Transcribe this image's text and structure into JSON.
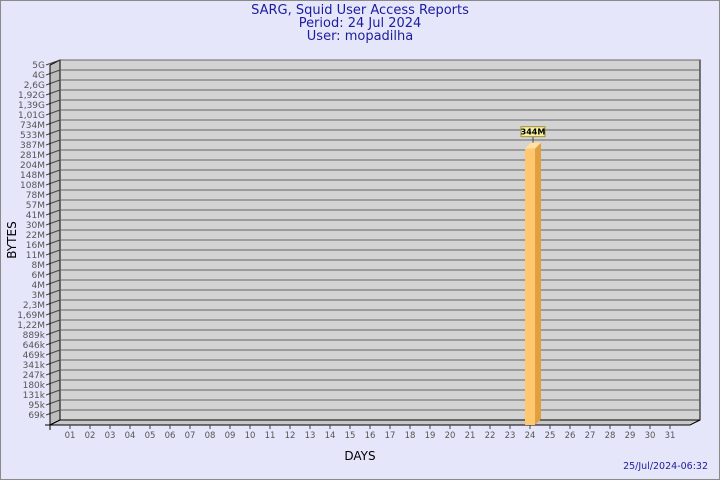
{
  "chart_data": {
    "type": "bar",
    "title": "SARG, Squid User Access Reports",
    "subtitle": [
      "Period: 24 Jul 2024",
      "User: mopadilha"
    ],
    "xlabel": "DAYS",
    "ylabel": "BYTES",
    "y_scale": "log",
    "y_ticks": [
      "5G",
      "4G",
      "2,6G",
      "1,92G",
      "1,39G",
      "1,01G",
      "734M",
      "533M",
      "387M",
      "281M",
      "204M",
      "148M",
      "108M",
      "78M",
      "57M",
      "41M",
      "30M",
      "22M",
      "16M",
      "11M",
      "8M",
      "6M",
      "4M",
      "3M",
      "2,3M",
      "1,69M",
      "1,22M",
      "889k",
      "646k",
      "469k",
      "341k",
      "247k",
      "180k",
      "131k",
      "95k",
      "69k"
    ],
    "categories": [
      "01",
      "02",
      "03",
      "04",
      "05",
      "06",
      "07",
      "08",
      "09",
      "10",
      "11",
      "12",
      "13",
      "14",
      "15",
      "16",
      "17",
      "18",
      "19",
      "20",
      "21",
      "22",
      "23",
      "24",
      "25",
      "26",
      "27",
      "28",
      "29",
      "30",
      "31"
    ],
    "values": [
      0,
      0,
      0,
      0,
      0,
      0,
      0,
      0,
      0,
      0,
      0,
      0,
      0,
      0,
      0,
      0,
      0,
      0,
      0,
      0,
      0,
      0,
      0,
      344,
      0,
      0,
      0,
      0,
      0,
      0,
      0
    ],
    "value_unit": "M",
    "data_labels": {
      "24": "344M"
    },
    "grid": true,
    "colors": {
      "background": "#e6e6fa",
      "plot": "#d3d3d3",
      "bar": "#ffc86e",
      "bar_side": "#e0a040",
      "text": "#1c1ca0"
    }
  },
  "footer": {
    "timestamp": "25/Jul/2024-06:32"
  }
}
